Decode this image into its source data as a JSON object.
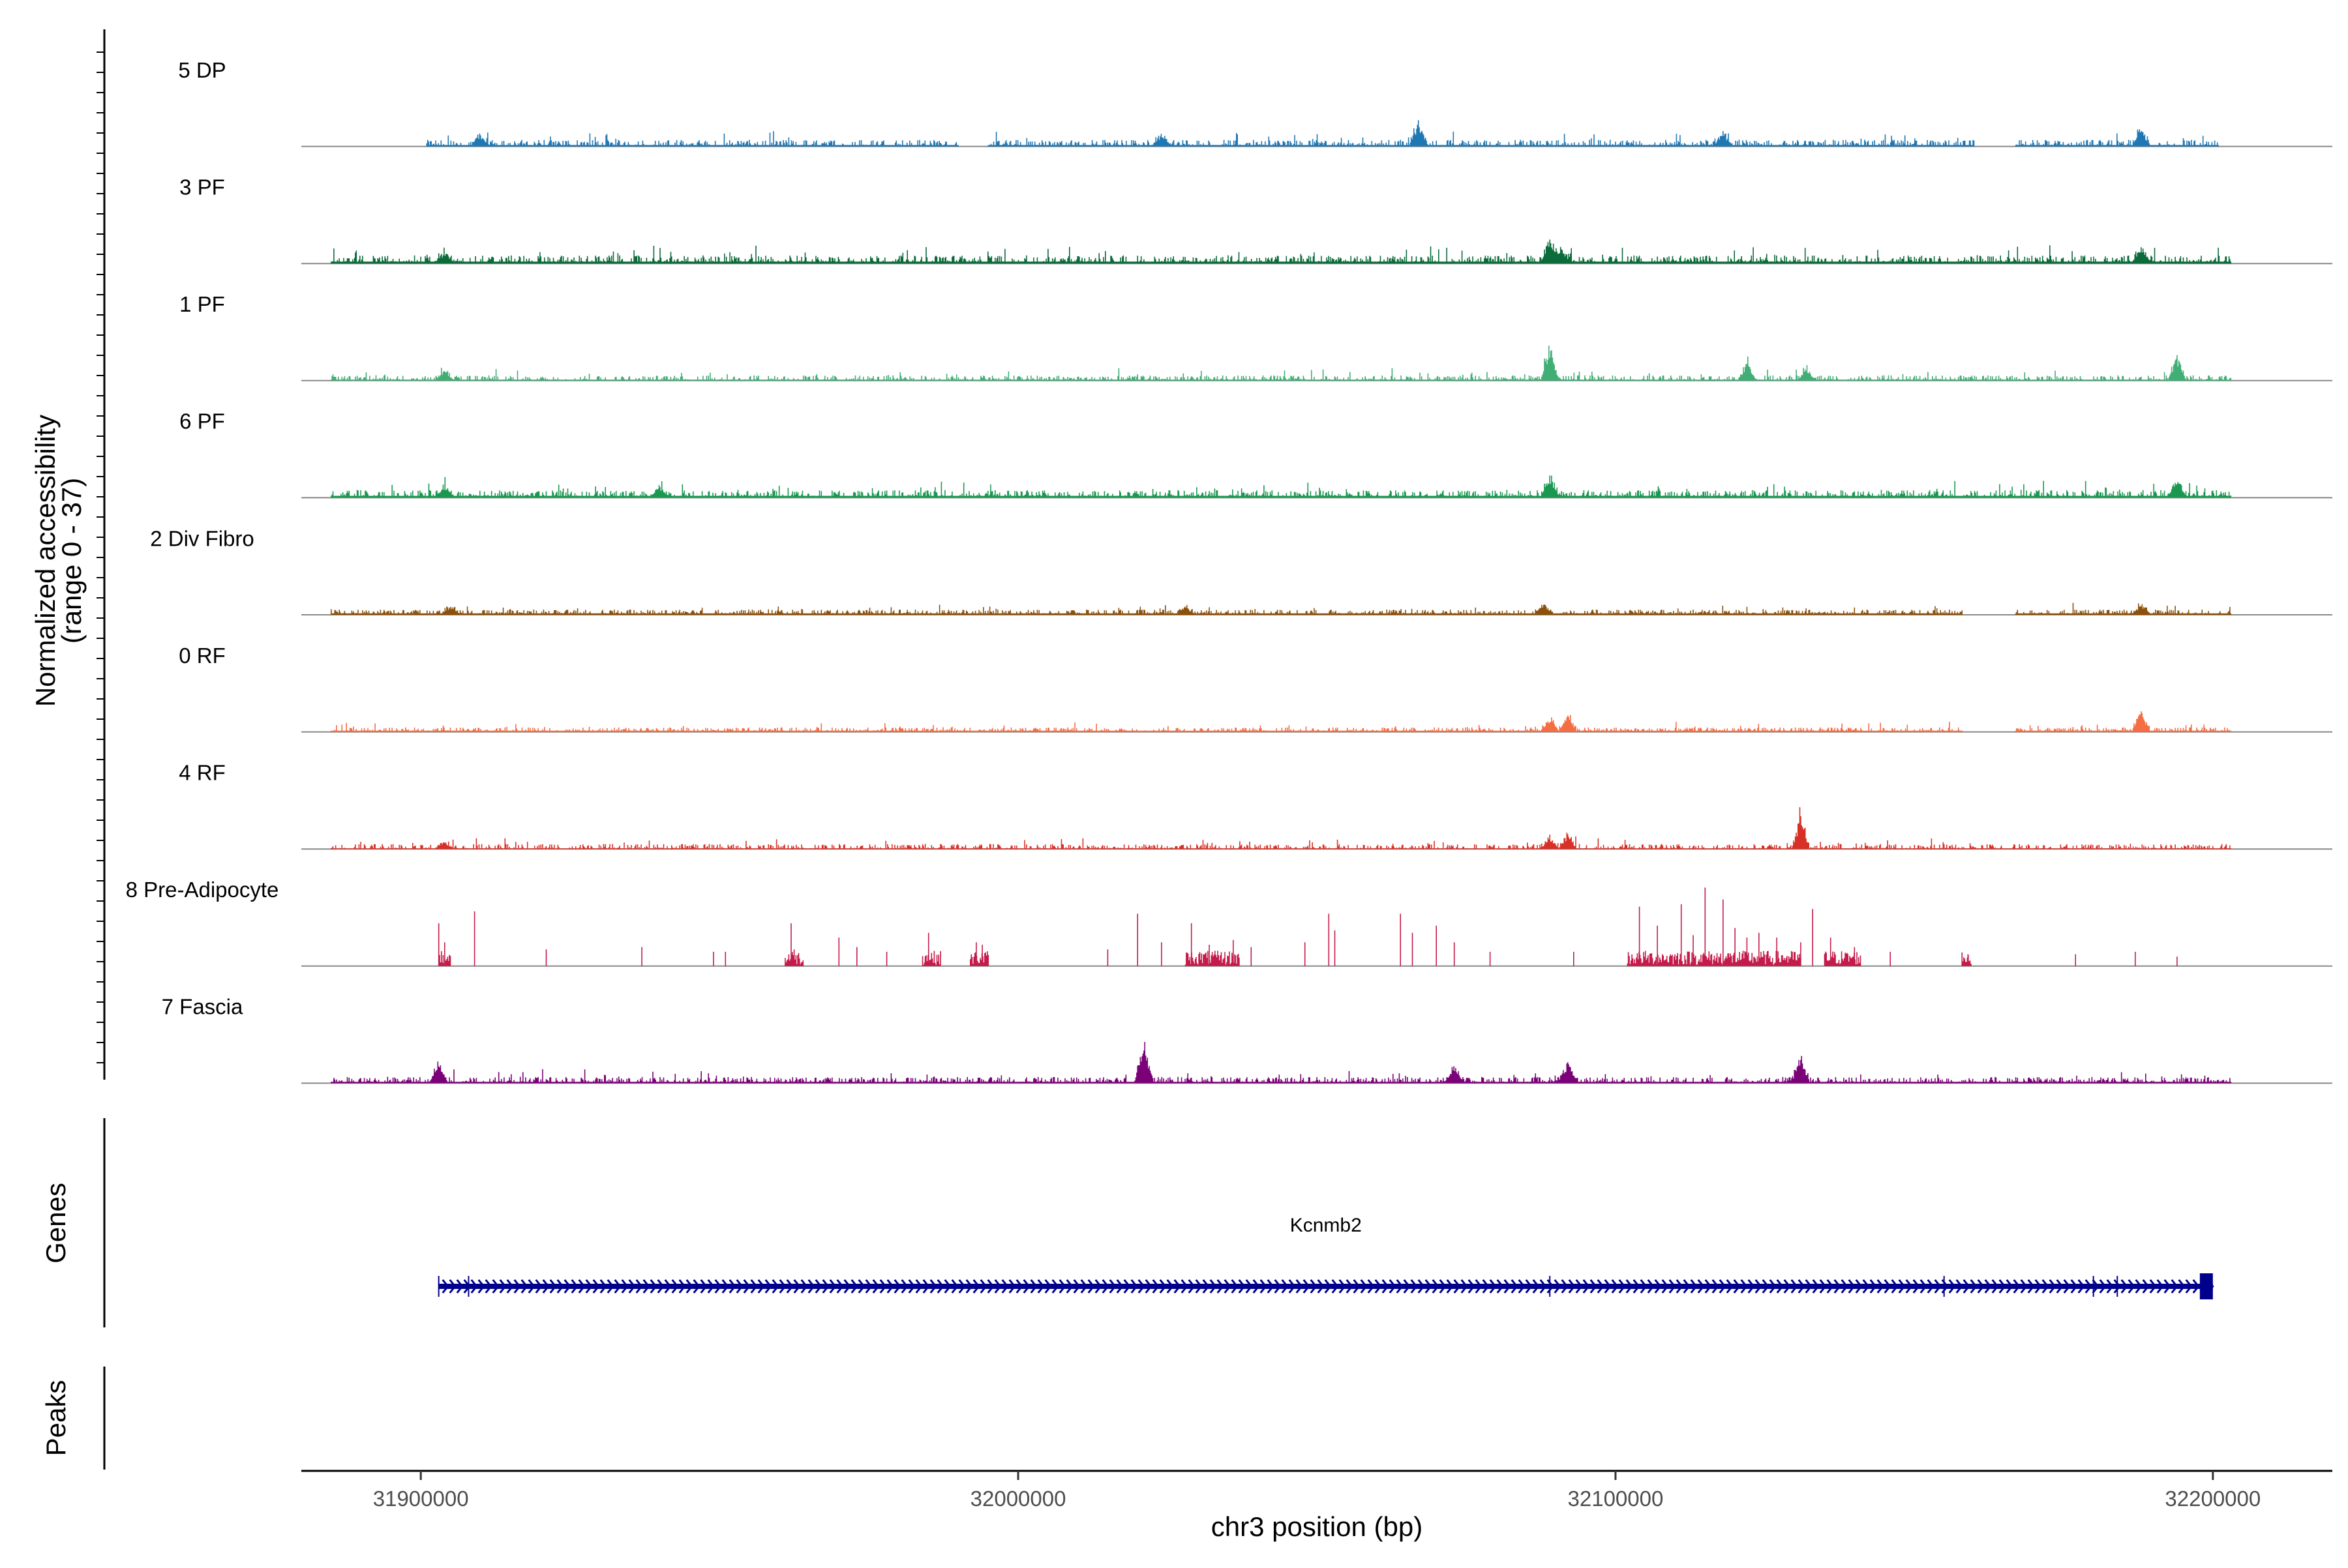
{
  "chart_data": {
    "type": "area",
    "title": "",
    "ylabel": "Normalized accessibility\n(range 0 - 37)",
    "ylabel_line1": "Normalized accessibility",
    "ylabel_line2": "(range 0 - 37)",
    "ylim": [
      0,
      37
    ],
    "xlabel": "chr3 position (bp)",
    "xlim": [
      31880000,
      32220000
    ],
    "data_range": [
      31890000,
      32205000
    ],
    "x_ticks": [
      31900000,
      32000000,
      32100000,
      32200000
    ],
    "x_tick_labels": [
      "31900000",
      "32000000",
      "32100000",
      "32200000"
    ],
    "series": [
      {
        "name": "5 DP",
        "color": "#1f78b4",
        "baseline": 0.6,
        "noise": 2.2,
        "segments": [
          [
            31901000,
            31990000
          ],
          [
            31995000,
            32160000
          ],
          [
            32167000,
            32201000
          ]
        ],
        "peaks": [
          [
            31910000,
            4
          ],
          [
            32024000,
            5
          ],
          [
            32067000,
            11
          ],
          [
            32118000,
            6
          ],
          [
            32188000,
            7
          ]
        ]
      },
      {
        "name": "3 PF",
        "color": "#0b6b3a",
        "baseline": 0.8,
        "noise": 2.6,
        "segments": [
          [
            31885000,
            32203000
          ]
        ],
        "peaks": [
          [
            31904000,
            4
          ],
          [
            32089000,
            10
          ],
          [
            32091000,
            6
          ],
          [
            32188000,
            7
          ]
        ]
      },
      {
        "name": "1 PF",
        "color": "#41ae76",
        "baseline": 0.4,
        "noise": 1.8,
        "segments": [
          [
            31885000,
            32203000
          ]
        ],
        "peaks": [
          [
            31904000,
            4
          ],
          [
            32089000,
            16
          ],
          [
            32122000,
            8
          ],
          [
            32132000,
            5
          ],
          [
            32194000,
            10
          ]
        ]
      },
      {
        "name": "6 PF",
        "color": "#1a9850",
        "baseline": 0.8,
        "noise": 2.4,
        "segments": [
          [
            31885000,
            32203000
          ]
        ],
        "peaks": [
          [
            31904000,
            4
          ],
          [
            31940000,
            4
          ],
          [
            32089000,
            9
          ],
          [
            32194000,
            8
          ]
        ]
      },
      {
        "name": "2 Div Fibro",
        "color": "#8c510a",
        "baseline": 0.6,
        "noise": 1.6,
        "segments": [
          [
            31885000,
            32158000
          ],
          [
            32167000,
            32203000
          ]
        ],
        "peaks": [
          [
            31905000,
            3
          ],
          [
            32028000,
            3
          ],
          [
            32088000,
            4
          ],
          [
            32188000,
            4
          ]
        ]
      },
      {
        "name": "0 RF",
        "color": "#f46d43",
        "baseline": 0.5,
        "noise": 1.4,
        "segments": [
          [
            31885000,
            32158000
          ],
          [
            32167000,
            32203000
          ]
        ],
        "peaks": [
          [
            32089000,
            6
          ],
          [
            32092000,
            7
          ],
          [
            32188000,
            9
          ]
        ]
      },
      {
        "name": "4 RF",
        "color": "#d73027",
        "baseline": 0.3,
        "noise": 1.8,
        "segments": [
          [
            31885000,
            32203000
          ]
        ],
        "peaks": [
          [
            31904000,
            3
          ],
          [
            32089000,
            5
          ],
          [
            32092000,
            6
          ],
          [
            32131000,
            15
          ]
        ]
      },
      {
        "name": "8 Pre-Adipocyte",
        "color": "#c51b4a",
        "baseline": 0,
        "noise": 0,
        "sparse": true,
        "spikes": [
          [
            31903000,
            18
          ],
          [
            31904000,
            10
          ],
          [
            31909000,
            23
          ],
          [
            31921000,
            7
          ],
          [
            31937000,
            8
          ],
          [
            31949000,
            6
          ],
          [
            31951000,
            6
          ],
          [
            31962000,
            18
          ],
          [
            31962500,
            7
          ],
          [
            31970000,
            12
          ],
          [
            31973000,
            8
          ],
          [
            31978000,
            6
          ],
          [
            31985000,
            14
          ],
          [
            31993000,
            10
          ],
          [
            31994000,
            9
          ],
          [
            32015000,
            7
          ],
          [
            32020000,
            22
          ],
          [
            32024000,
            10
          ],
          [
            32029000,
            18
          ],
          [
            32032000,
            9
          ],
          [
            32036000,
            11
          ],
          [
            32039000,
            8
          ],
          [
            32048000,
            10
          ],
          [
            32052000,
            22
          ],
          [
            32053000,
            15
          ],
          [
            32064000,
            22
          ],
          [
            32066000,
            14
          ],
          [
            32070000,
            17
          ],
          [
            32073000,
            10
          ],
          [
            32079000,
            6
          ],
          [
            32093000,
            6
          ],
          [
            32104000,
            25
          ],
          [
            32107000,
            17
          ],
          [
            32111000,
            26
          ],
          [
            32113000,
            13
          ],
          [
            32115000,
            33
          ],
          [
            32118000,
            28
          ],
          [
            32120000,
            16
          ],
          [
            32122000,
            12
          ],
          [
            32124000,
            14
          ],
          [
            32127000,
            12
          ],
          [
            32131000,
            10
          ],
          [
            32133000,
            24
          ],
          [
            32136000,
            12
          ],
          [
            32140000,
            8
          ],
          [
            32146000,
            6
          ],
          [
            32159000,
            5
          ],
          [
            32177000,
            5
          ],
          [
            32187000,
            6
          ],
          [
            32194000,
            4
          ]
        ],
        "segments": [
          [
            31903000,
            31905000
          ],
          [
            31961000,
            31964000
          ],
          [
            31984000,
            31987000
          ],
          [
            31992000,
            31995000
          ],
          [
            32028000,
            32037000
          ],
          [
            32102000,
            32131000
          ],
          [
            32135000,
            32141000
          ],
          [
            32158000,
            32159500
          ]
        ]
      },
      {
        "name": "7 Fascia",
        "color": "#7a0177",
        "baseline": 0.6,
        "noise": 2.0,
        "segments": [
          [
            31885000,
            32203000
          ]
        ],
        "peaks": [
          [
            31903000,
            8
          ],
          [
            32021000,
            20
          ],
          [
            32073000,
            8
          ],
          [
            32092000,
            9
          ],
          [
            32131000,
            12
          ]
        ]
      }
    ],
    "genes_panel": {
      "label": "Genes",
      "genes": [
        {
          "name": "Kcnmb2",
          "start": 31903000,
          "end": 32200000,
          "strand": "+",
          "color": "#00008b",
          "exons": [
            31903000,
            31908000,
            32089000,
            32155000,
            32180000,
            32184000
          ]
        }
      ]
    },
    "peaks_panel": {
      "label": "Peaks",
      "peaks": []
    }
  }
}
